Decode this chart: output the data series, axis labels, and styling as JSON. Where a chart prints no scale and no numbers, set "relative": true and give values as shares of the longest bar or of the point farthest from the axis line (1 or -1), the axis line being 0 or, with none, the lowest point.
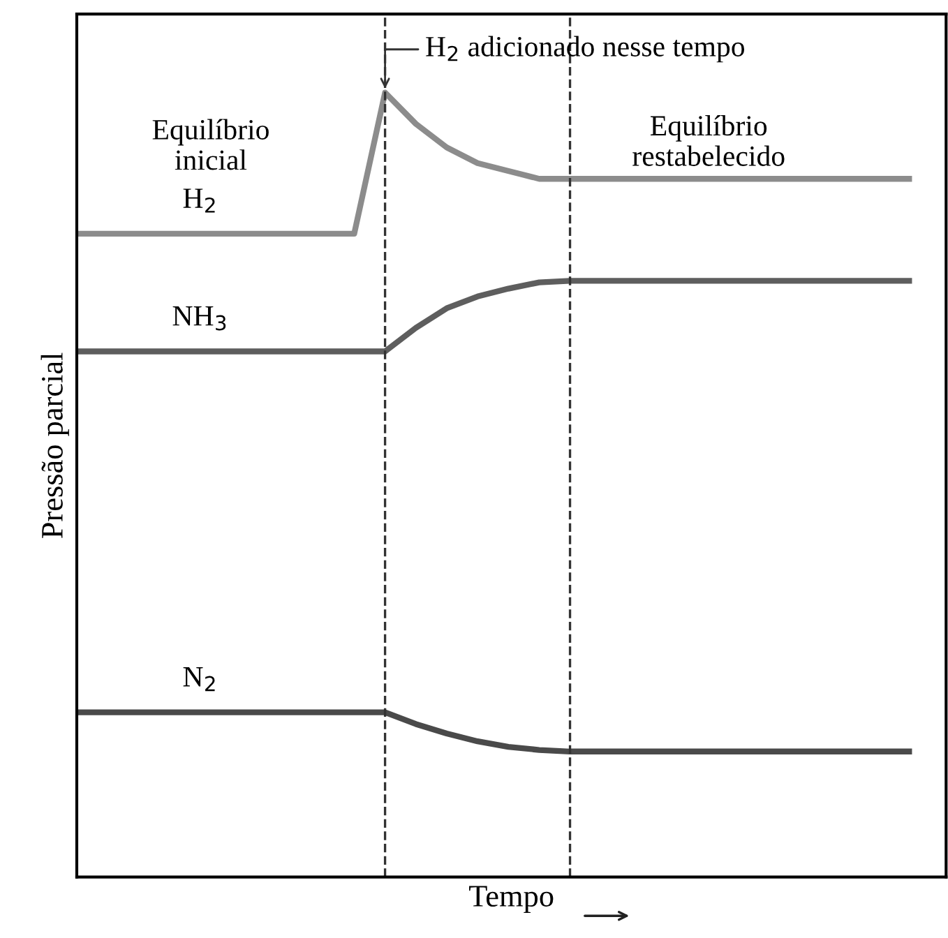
{
  "chart_data": {
    "type": "line",
    "relative": true,
    "xlabel": "Tempo",
    "ylabel": "Pressão parcial",
    "categories": [
      null,
      null,
      null,
      null,
      null,
      null,
      null,
      null,
      null,
      null,
      null,
      null,
      null,
      null,
      null,
      null,
      null,
      null,
      null,
      null,
      null,
      null,
      null,
      null,
      null,
      null,
      null,
      null
    ],
    "series": [
      {
        "name": "H$_{2}$",
        "color": "#8c8c8c",
        "values": [
          0.82,
          0.82,
          0.82,
          0.82,
          0.82,
          0.82,
          0.82,
          0.82,
          0.82,
          0.82,
          1.0,
          0.96,
          0.93,
          0.91,
          0.9,
          0.89,
          0.89,
          0.89,
          0.89,
          0.89,
          0.89,
          0.89,
          0.89,
          0.89,
          0.89,
          0.89,
          0.89,
          0.89
        ]
      },
      {
        "name": "NH$_{3}$",
        "color": "#5e5e5e",
        "values": [
          0.67,
          0.67,
          0.67,
          0.67,
          0.67,
          0.67,
          0.67,
          0.67,
          0.67,
          0.67,
          0.67,
          0.7,
          0.725,
          0.74,
          0.75,
          0.758,
          0.76,
          0.76,
          0.76,
          0.76,
          0.76,
          0.76,
          0.76,
          0.76,
          0.76,
          0.76,
          0.76,
          0.76
        ]
      },
      {
        "name": "N$_{2}$",
        "color": "#4a4a4a",
        "values": [
          0.21,
          0.21,
          0.21,
          0.21,
          0.21,
          0.21,
          0.21,
          0.21,
          0.21,
          0.21,
          0.21,
          0.195,
          0.183,
          0.173,
          0.166,
          0.162,
          0.16,
          0.16,
          0.16,
          0.16,
          0.16,
          0.16,
          0.16,
          0.16,
          0.16,
          0.16,
          0.16,
          0.16
        ]
      }
    ],
    "annotations": [
      "H$_{2}$ adicionado nesse tempo",
      "Equilíbrio\ninicial",
      "Equilíbrio\nrestabelecido"
    ],
    "marker": "none",
    "line_style": "solid"
  }
}
